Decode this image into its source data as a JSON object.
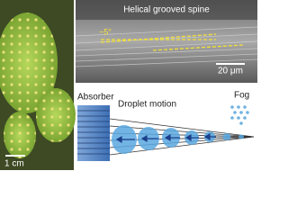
{
  "panels": {
    "photo": {
      "scale_bar": "1 cm"
    },
    "sem": {
      "title": "Helical grooved spine",
      "angle": "~5°",
      "scale_bar": "20 μm"
    },
    "diagram": {
      "absorber": "Absorber",
      "motion": "Droplet motion",
      "fog": "Fog"
    }
  }
}
